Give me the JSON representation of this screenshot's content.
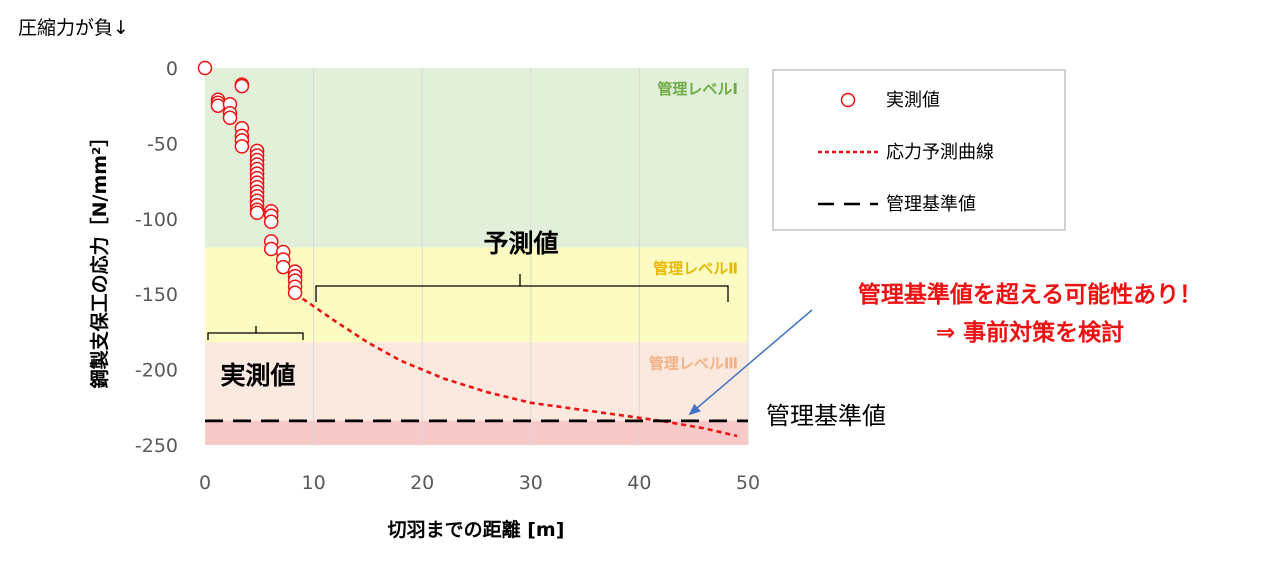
{
  "chart_data": {
    "type": "scatter",
    "top_note": "圧縮力が負↓",
    "xlabel": "切羽までの距離 [m]",
    "ylabel": "鋼製支保工の応力［N/mm²］",
    "xlim": [
      0,
      50
    ],
    "ylim": [
      -250,
      0
    ],
    "x_ticks": [
      "0",
      "10",
      "20",
      "30",
      "40",
      "50"
    ],
    "y_ticks": [
      "0",
      "-50",
      "-100",
      "-150",
      "-200",
      "-250"
    ],
    "grid": "vertical",
    "bands": [
      {
        "label": "管理レベルⅠ",
        "from": -119,
        "to": 0,
        "color": "#e2efd9",
        "label_color": "#70ad47"
      },
      {
        "label": "管理レベルⅡ",
        "from": -182,
        "to": -119,
        "color": "#fbfbc2",
        "label_color": "#e6b800"
      },
      {
        "label": "管理レベルⅢ",
        "from": -234,
        "to": -182,
        "color": "#fbe9e0",
        "label_color": "#f4b183"
      },
      {
        "label": "",
        "from": -250,
        "to": -234,
        "color": "#f8c9c9",
        "label_color": "#f4b183"
      }
    ],
    "series": [
      {
        "name": "実測値",
        "kind": "scatter",
        "color": "#ee1111",
        "points": [
          [
            0,
            0
          ],
          [
            1.2,
            -21
          ],
          [
            1.2,
            -23
          ],
          [
            1.2,
            -25
          ],
          [
            2.3,
            -24
          ],
          [
            2.3,
            -30
          ],
          [
            2.3,
            -33
          ],
          [
            3.4,
            -11
          ],
          [
            3.4,
            -12
          ],
          [
            3.4,
            -40
          ],
          [
            3.4,
            -45
          ],
          [
            3.4,
            -48
          ],
          [
            3.4,
            -52
          ],
          [
            4.8,
            -55
          ],
          [
            4.8,
            -58
          ],
          [
            4.8,
            -61
          ],
          [
            4.8,
            -64
          ],
          [
            4.8,
            -67
          ],
          [
            4.8,
            -70
          ],
          [
            4.8,
            -73
          ],
          [
            4.8,
            -76
          ],
          [
            4.8,
            -79
          ],
          [
            4.8,
            -82
          ],
          [
            4.8,
            -85
          ],
          [
            4.8,
            -88
          ],
          [
            4.8,
            -91
          ],
          [
            4.8,
            -94
          ],
          [
            4.8,
            -96
          ],
          [
            6.1,
            -95
          ],
          [
            6.1,
            -98
          ],
          [
            6.1,
            -102
          ],
          [
            6.1,
            -115
          ],
          [
            6.1,
            -120
          ],
          [
            7.2,
            -122
          ],
          [
            7.2,
            -127
          ],
          [
            7.2,
            -132
          ],
          [
            8.3,
            -135
          ],
          [
            8.3,
            -138
          ],
          [
            8.3,
            -141
          ],
          [
            8.3,
            -145
          ],
          [
            8.3,
            -149
          ]
        ]
      },
      {
        "name": "応力予測曲線",
        "kind": "line",
        "dash": "dotted",
        "color": "#ee1111",
        "points": [
          [
            9,
            -153
          ],
          [
            12,
            -168
          ],
          [
            15,
            -182
          ],
          [
            18,
            -194
          ],
          [
            22,
            -206
          ],
          [
            26,
            -215
          ],
          [
            30,
            -222
          ],
          [
            34,
            -226
          ],
          [
            38,
            -230
          ],
          [
            42,
            -234
          ],
          [
            46,
            -239
          ],
          [
            49,
            -244
          ]
        ]
      },
      {
        "name": "管理基準値",
        "kind": "line",
        "dash": "dashed",
        "color": "#000000",
        "points": [
          [
            0,
            -234
          ],
          [
            50,
            -234
          ]
        ]
      }
    ],
    "legend": {
      "placement": "right",
      "entries": [
        "実測値",
        "応力予測曲線",
        "管理基準値"
      ]
    },
    "annotations": {
      "measured_label": "実測値",
      "predicted_label": "予測値",
      "reference_label": "管理基準値",
      "warning_line1": "管理基準値を超える可能性あり！",
      "warning_line2": "⇒ 事前対策を検討",
      "arrow_color": "#4472c4"
    }
  }
}
